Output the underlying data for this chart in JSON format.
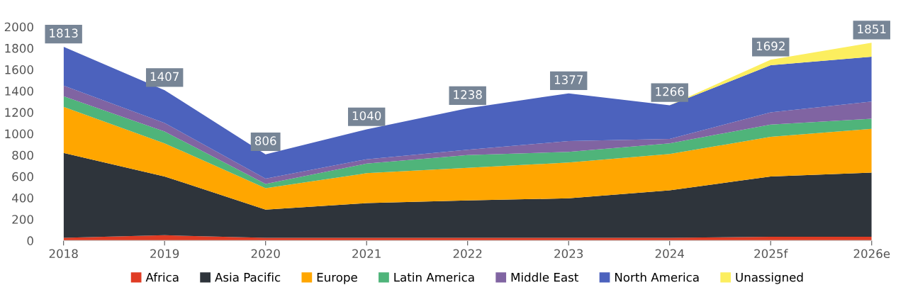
{
  "chart_data": {
    "type": "area",
    "stacked": true,
    "categories": [
      "2018",
      "2019",
      "2020",
      "2021",
      "2022",
      "2023",
      "2024",
      "2025f",
      "2026e"
    ],
    "series": [
      {
        "name": "Africa",
        "color": "#e03c24",
        "values": [
          25,
          50,
          25,
          25,
          25,
          25,
          25,
          35,
          35
        ]
      },
      {
        "name": "Asia Pacific",
        "color": "#2e343b",
        "values": [
          795,
          550,
          265,
          325,
          350,
          370,
          445,
          565,
          600
        ]
      },
      {
        "name": "Europe",
        "color": "#ffa600",
        "values": [
          430,
          310,
          200,
          280,
          305,
          335,
          340,
          370,
          410
        ]
      },
      {
        "name": "Latin America",
        "color": "#4fb47a",
        "values": [
          100,
          110,
          40,
          90,
          120,
          100,
          100,
          115,
          95
        ]
      },
      {
        "name": "Middle East",
        "color": "#8064a2",
        "values": [
          100,
          80,
          50,
          40,
          50,
          100,
          40,
          115,
          160
        ]
      },
      {
        "name": "North America",
        "color": "#4c62bd",
        "values": [
          363,
          307,
          226,
          280,
          388,
          447,
          316,
          440,
          420
        ]
      },
      {
        "name": "Unassigned",
        "color": "#fcee5f",
        "values": [
          null,
          null,
          null,
          null,
          null,
          null,
          0,
          52,
          131
        ]
      }
    ],
    "totals": [
      "1813",
      "1407",
      "806",
      "1040",
      "1238",
      "1377",
      "1266",
      "1692",
      "1851"
    ],
    "ylim": [
      0,
      2000
    ],
    "yticks": [
      0,
      200,
      400,
      600,
      800,
      1000,
      1200,
      1400,
      1600,
      1800,
      2000
    ],
    "grid": false,
    "legend": "bottom"
  }
}
